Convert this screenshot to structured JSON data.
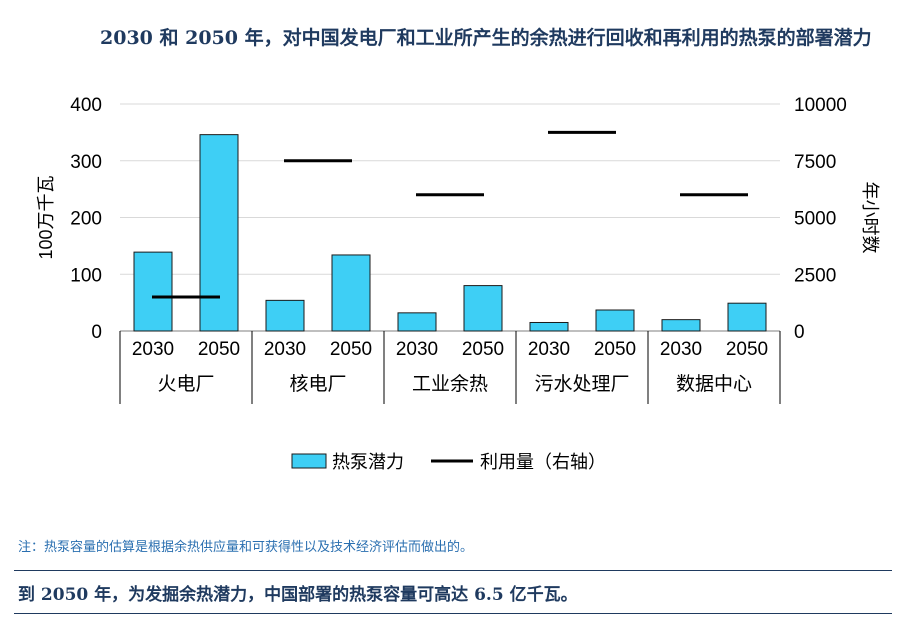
{
  "title": "2030 和 2050 年，对中国发电厂和工业所产生的余热进行回收和再利用的热泵的部署潜力",
  "note": "注：热泵容量的估算是根据余热供应量和可获得性以及技术经济评估而做出的。",
  "footer": "到 2050 年，为发掘余热潜力，中国部署的热泵容量可高达 6.5 亿千瓦。",
  "colors": {
    "bar": "#3ecff5",
    "bar_border": "#1a1a1a",
    "line": "#000000",
    "title": "#1f3a5f",
    "note": "#2a6fb0"
  },
  "chart_data": {
    "type": "bar",
    "groups": [
      "火电厂",
      "核电厂",
      "工业余热",
      "污水处理厂",
      "数据中心"
    ],
    "years": [
      "2030",
      "2050"
    ],
    "ylabel_left": "100万千瓦",
    "ylabel_right": "年小时数",
    "ylim_left": [
      0,
      400
    ],
    "ylim_right": [
      0,
      10000
    ],
    "yticks_left": [
      "0",
      "100",
      "200",
      "300",
      "400"
    ],
    "yticks_right": [
      "0",
      "2500",
      "5000",
      "7500",
      "10000"
    ],
    "series": [
      {
        "name": "热泵潜力",
        "type": "bar",
        "axis": "left",
        "values": [
          139,
          346,
          54,
          134,
          32,
          80,
          15,
          37,
          20,
          49
        ]
      },
      {
        "name": "利用量（右轴）",
        "type": "line-marker",
        "axis": "right",
        "values": [
          1500,
          7500,
          6000,
          8750,
          6000
        ]
      }
    ],
    "legend_position": "bottom"
  }
}
